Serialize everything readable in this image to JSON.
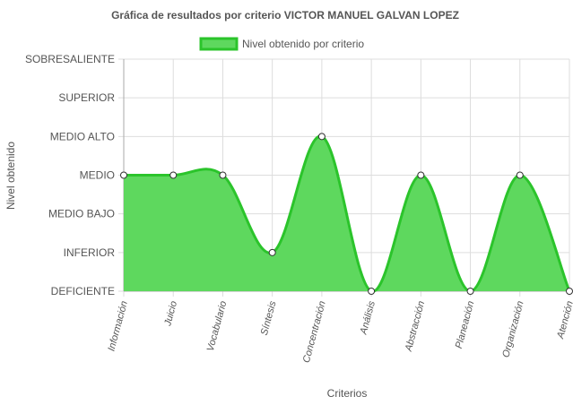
{
  "chart_data": {
    "type": "area",
    "title": "Gráfica de resultados por criterio VICTOR MANUEL GALVAN LOPEZ",
    "xlabel": "Criterios",
    "ylabel": "Nivel obtenido",
    "y_levels": [
      "DEFICIENTE",
      "INFERIOR",
      "MEDIO BAJO",
      "MEDIO",
      "MEDIO ALTO",
      "SUPERIOR",
      "SOBRESALIENTE"
    ],
    "categories": [
      "Información",
      "Juicio",
      "Vocabulario",
      "Síntesis",
      "Concentración",
      "Análisis",
      "Abstracción",
      "Planeación",
      "Organización",
      "Atención"
    ],
    "series": [
      {
        "name": "Nivel obtenido por criterio",
        "values": [
          3,
          3,
          3,
          1,
          4,
          0,
          3,
          0,
          3,
          0
        ],
        "color": "#2bc42b",
        "fill": "#5ed85e"
      }
    ],
    "ylim": [
      0,
      6
    ],
    "grid": true,
    "legend_position": "top"
  }
}
